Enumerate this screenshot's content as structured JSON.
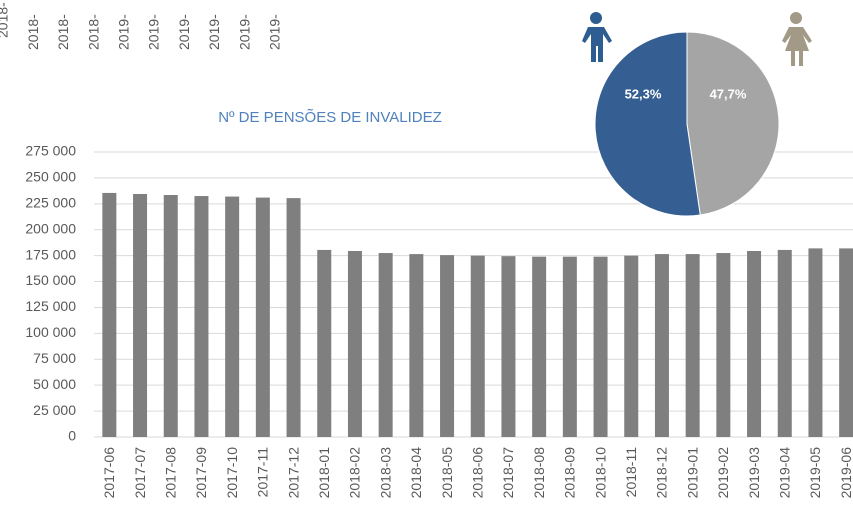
{
  "cropped_axis_labels": [
    "2018-",
    "2018-",
    "2018-",
    "2018-",
    "2019-",
    "2019-",
    "2019-",
    "2019-",
    "2019-",
    "2019-"
  ],
  "chart_data": [
    {
      "type": "bar",
      "title": "Nº DE PENSÕES DE INVALIDEZ",
      "categories": [
        "2017-06",
        "2017-07",
        "2017-08",
        "2017-09",
        "2017-10",
        "2017-11",
        "2017-12",
        "2018-01",
        "2018-02",
        "2018-03",
        "2018-04",
        "2018-05",
        "2018-06",
        "2018-07",
        "2018-08",
        "2018-09",
        "2018-10",
        "2018-11",
        "2018-12",
        "2019-01",
        "2019-02",
        "2019-03",
        "2019-04",
        "2019-05",
        "2019-06"
      ],
      "values": [
        235500,
        234500,
        233500,
        232500,
        232000,
        231000,
        230500,
        180500,
        179500,
        177500,
        176500,
        175500,
        175000,
        174500,
        174000,
        174000,
        174000,
        175000,
        176500,
        176500,
        177500,
        179500,
        180500,
        182000,
        182000
      ],
      "color": "#7f7f7f",
      "ylim": [
        0,
        275000
      ],
      "yticks": [
        0,
        {
          "value": 25000,
          "label": "25 000"
        },
        {
          "value": 50000,
          "label": "50 000"
        },
        {
          "value": 75000,
          "label": "75 000"
        },
        {
          "value": 100000,
          "label": "100 000"
        },
        {
          "value": 125000,
          "label": "125 000"
        },
        {
          "value": 150000,
          "label": "150 000"
        },
        {
          "value": 175000,
          "label": "175 000"
        },
        {
          "value": 200000,
          "label": "200 000"
        },
        {
          "value": 225000,
          "label": "225 000"
        },
        {
          "value": 250000,
          "label": "250 000"
        },
        {
          "value": 275000,
          "label": "275 000"
        }
      ],
      "grid": true
    },
    {
      "type": "pie",
      "values": [
        47.7,
        52.3
      ],
      "value_labels": [
        "47,7%",
        "52,3%"
      ],
      "colors": [
        "#a5a5a5",
        "#355f93"
      ]
    }
  ]
}
